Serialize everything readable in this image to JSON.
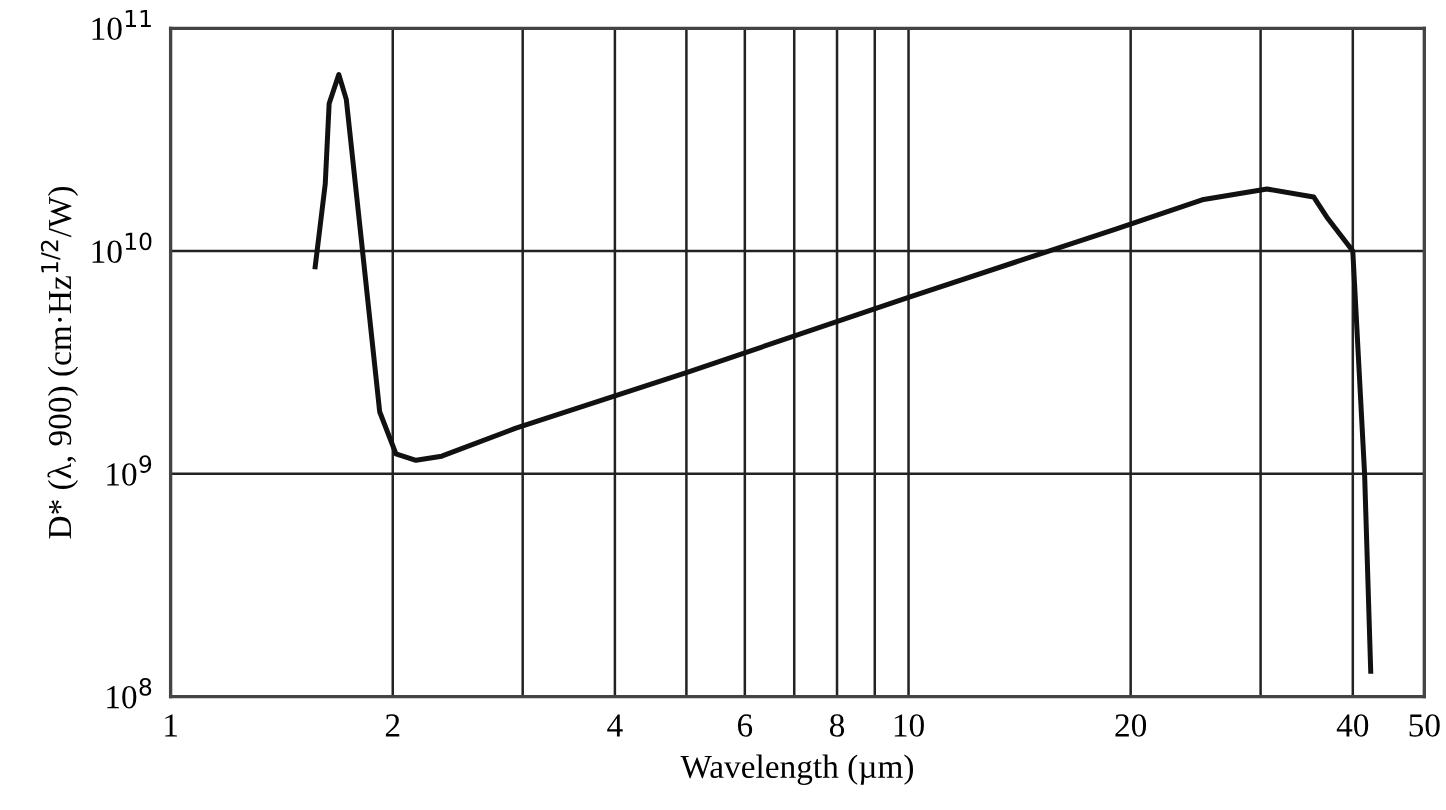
{
  "chart_data": {
    "type": "line",
    "xlabel": "Wavelength (µm)",
    "ylabel": "D* (λ, 900) (cm·Hz$^{1/2}$/W)",
    "log": "xy",
    "grid": true,
    "line_style": "solid",
    "marker": "none",
    "xlim": [
      1,
      50
    ],
    "ylim": [
      100000000.0,
      100000000000.0
    ],
    "xticks": [
      1,
      2,
      {
        "value": 3,
        "label": null
      },
      4,
      {
        "value": 5,
        "label": null
      },
      6,
      {
        "value": 7,
        "label": null
      },
      8,
      {
        "value": 9,
        "label": null
      },
      10,
      20,
      {
        "value": 30,
        "label": null
      },
      40,
      50
    ],
    "yticks": [
      {
        "value": 100000000.0,
        "label": "10$^{8}$"
      },
      {
        "value": 1000000000.0,
        "label": "10$^{9}$"
      },
      {
        "value": 10000000000.0,
        "label": "10$^{10}$"
      },
      {
        "value": 100000000000.0,
        "label": "10$^{11}$"
      }
    ],
    "series": [
      {
        "color": "#111111",
        "x": [
          1.57,
          1.62,
          1.64,
          1.69,
          1.73,
          1.82,
          1.92,
          2.02,
          2.15,
          2.33,
          2.93,
          5,
          10,
          19,
          25,
          30.6,
          35.4,
          37,
          40,
          41.5,
          42.3
        ],
        "values": [
          8500000000.0,
          20000000000.0,
          46000000000.0,
          62000000000.0,
          48000000000.0,
          10000000000.0,
          1900000000.0,
          1230000000.0,
          1150000000.0,
          1200000000.0,
          1600000000.0,
          2850000000.0,
          6200000000.0,
          12500000000.0,
          17000000000.0,
          19000000000.0,
          17500000000.0,
          14000000000.0,
          10000000000.0,
          1000000000.0,
          130000000.0
        ]
      }
    ]
  }
}
